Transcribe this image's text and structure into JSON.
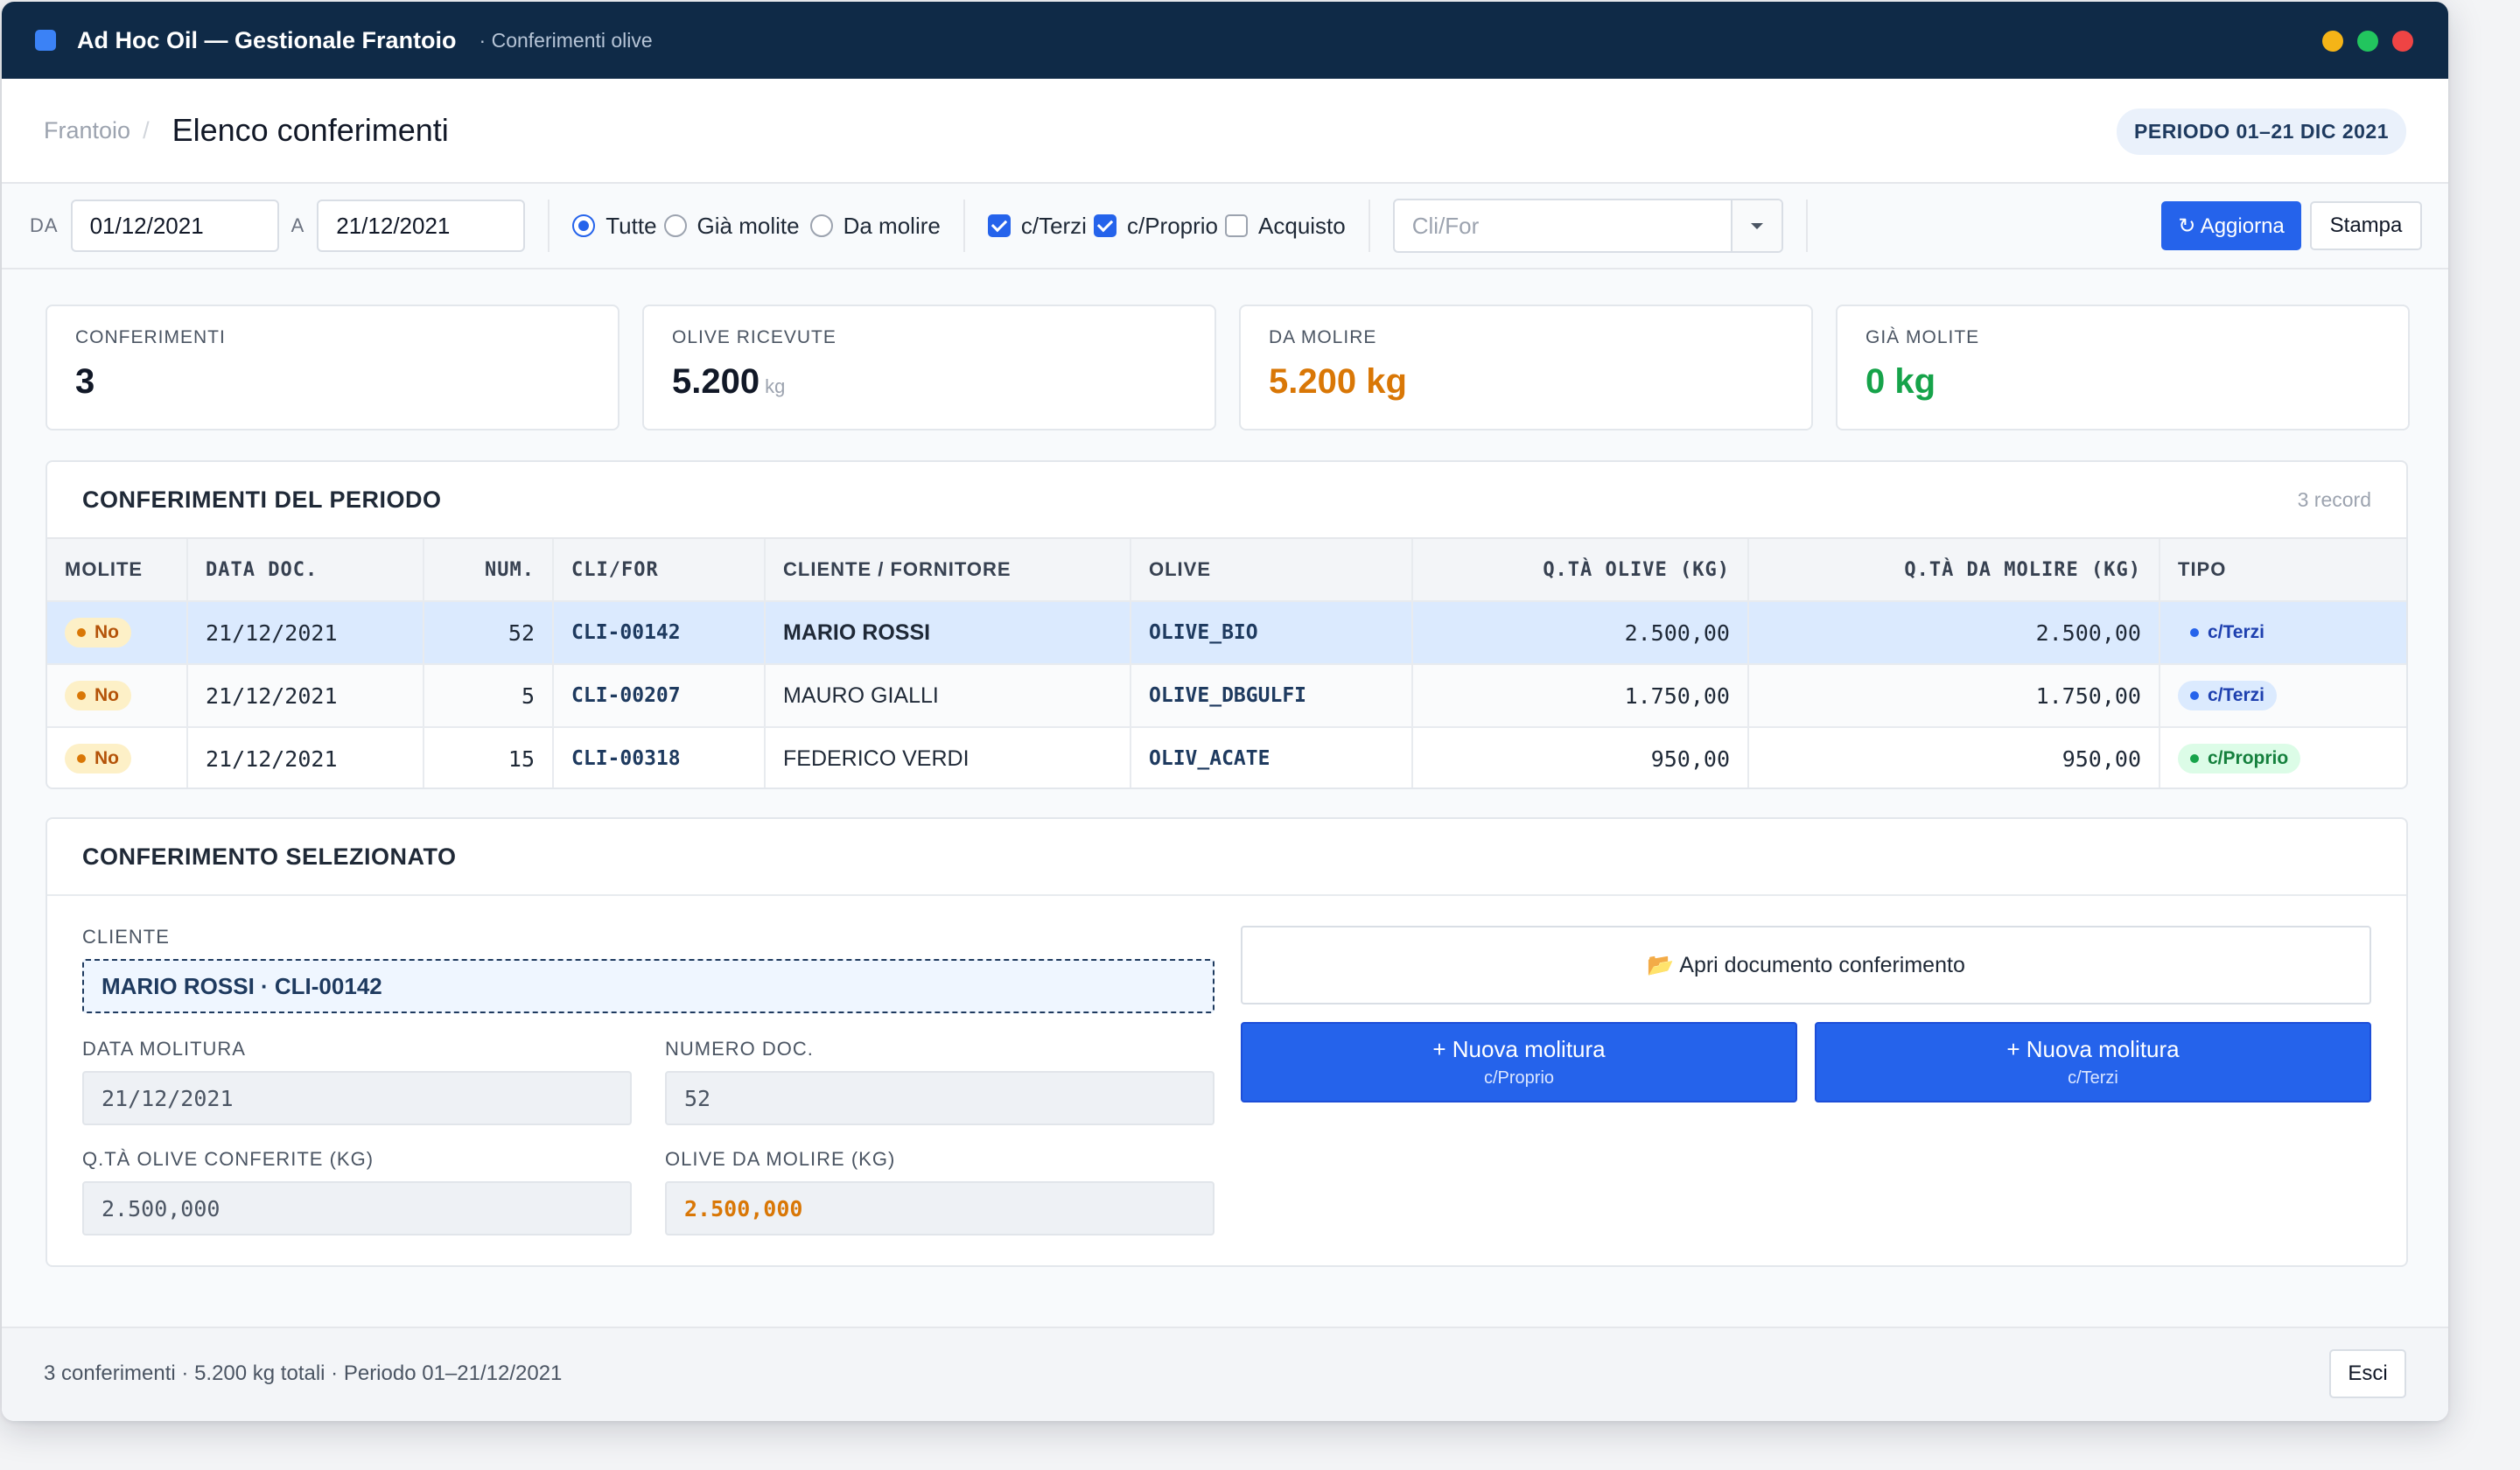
{
  "window": {
    "title": "Ad Hoc Oil — Gestionale Frantoio",
    "subtitle": "· Conferimenti olive"
  },
  "header": {
    "breadcrumb": "Frantoio",
    "breadcrumb_sep": "/",
    "title": "Elenco conferimenti",
    "period_badge": "PERIODO 01–21 DIC 2021"
  },
  "filters": {
    "from_label": "DA",
    "from_value": "01/12/2021",
    "to_label": "A",
    "to_value": "21/12/2021",
    "radios": [
      {
        "label": "Tutte",
        "checked": true
      },
      {
        "label": "Già molite",
        "checked": false
      },
      {
        "label": "Da molire",
        "checked": false
      }
    ],
    "checks": [
      {
        "label": "c/Terzi",
        "checked": true
      },
      {
        "label": "c/Proprio",
        "checked": true
      },
      {
        "label": "Acquisto",
        "checked": false
      }
    ],
    "clifor_placeholder": "Cli/For",
    "refresh_label": "↻ Aggiorna",
    "print_label": "Stampa"
  },
  "stats": {
    "conferimenti_label": "CONFERIMENTI",
    "conferimenti_value": "3",
    "ricevute_label": "OLIVE RICEVUTE",
    "ricevute_value": "5.200",
    "ricevute_unit": "kg",
    "da_molire_label": "DA MOLIRE",
    "da_molire_value": "5.200 kg",
    "gia_molite_label": "GIÀ MOLITE",
    "gia_molite_value": "0 kg"
  },
  "table": {
    "title": "CONFERIMENTI DEL PERIODO",
    "meta": "3 record",
    "columns": [
      "MOLITE",
      "DATA DOC.",
      "NUM.",
      "CLI/FOR",
      "CLIENTE / FORNITORE",
      "OLIVE",
      "Q.TÀ OLIVE (KG)",
      "Q.TÀ DA MOLIRE (KG)",
      "TIPO"
    ],
    "rows": [
      {
        "molite": "No",
        "data": "21/12/2021",
        "num": "52",
        "clifor": "CLI-00142",
        "cliente": "MARIO ROSSI",
        "olive": "OLIVE_BIO",
        "qta_olive": "2.500,00",
        "qta_molire": "2.500,00",
        "tipo": "c/Terzi"
      },
      {
        "molite": "No",
        "data": "21/12/2021",
        "num": "5",
        "clifor": "CLI-00207",
        "cliente": "MAURO GIALLI",
        "olive": "OLIVE_DBGULFI",
        "qta_olive": "1.750,00",
        "qta_molire": "1.750,00",
        "tipo": "c/Terzi"
      },
      {
        "molite": "No",
        "data": "21/12/2021",
        "num": "15",
        "clifor": "CLI-00318",
        "cliente": "FEDERICO VERDI",
        "olive": "OLIV_ACATE",
        "qta_olive": "950,00",
        "qta_molire": "950,00",
        "tipo": "c/Proprio"
      }
    ]
  },
  "detail": {
    "title": "CONFERIMENTO SELEZIONATO",
    "cliente_label": "CLIENTE",
    "cliente_value": "MARIO ROSSI · CLI-00142",
    "data_label": "DATA MOLITURA",
    "data_value": "21/12/2021",
    "numero_label": "NUMERO DOC.",
    "numero_value": "52",
    "qta_label": "Q.TÀ OLIVE CONFERITE (KG)",
    "qta_value": "2.500,000",
    "molire_label": "OLIVE DA MOLIRE (KG)",
    "molire_value": "2.500,000",
    "open_doc_icon": "📂",
    "open_doc_label": "Apri documento conferimento",
    "new_proprio_label": "+ Nuova molitura",
    "new_proprio_sub": "c/Proprio",
    "new_terzi_label": "+ Nuova molitura",
    "new_terzi_sub": "c/Terzi"
  },
  "footer": {
    "summary": "3 conferimenti · 5.200 kg totali · Periodo 01–21/12/2021",
    "exit_label": "Esci"
  },
  "colors": {
    "titlebar": "#0f2a47",
    "accent": "#2563eb",
    "warning": "#d97706",
    "success": "#16a34a",
    "traffic_yellow": "#f5b417",
    "traffic_green": "#22c55e",
    "traffic_red": "#ef4444"
  }
}
